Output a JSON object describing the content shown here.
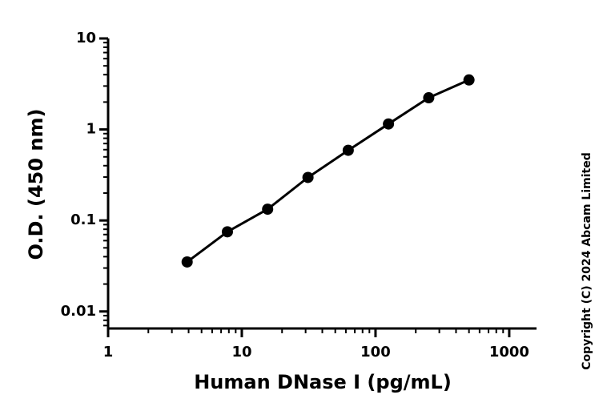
{
  "chart_data": {
    "type": "line",
    "x_label": "Human DNase I (pg/mL)",
    "y_label": "O.D. (450 nm)",
    "annotation": "Copyright (C) 2024 Abcam Limited",
    "x": [
      3.9,
      7.8,
      15.6,
      31.25,
      62.5,
      125,
      250,
      500
    ],
    "series": [
      {
        "color": "#000000",
        "values": [
          0.035,
          0.075,
          0.133,
          0.297,
          0.59,
          1.15,
          2.23,
          3.5
        ]
      }
    ],
    "xlim": [
      1,
      1600
    ],
    "xticks": [
      1,
      10,
      100,
      1000
    ],
    "xscale": "log",
    "ylim": [
      0.0065,
      10
    ],
    "yticks": [
      0.01,
      0.1,
      1,
      10
    ],
    "yscale": "log",
    "markers": true,
    "grid": false
  }
}
